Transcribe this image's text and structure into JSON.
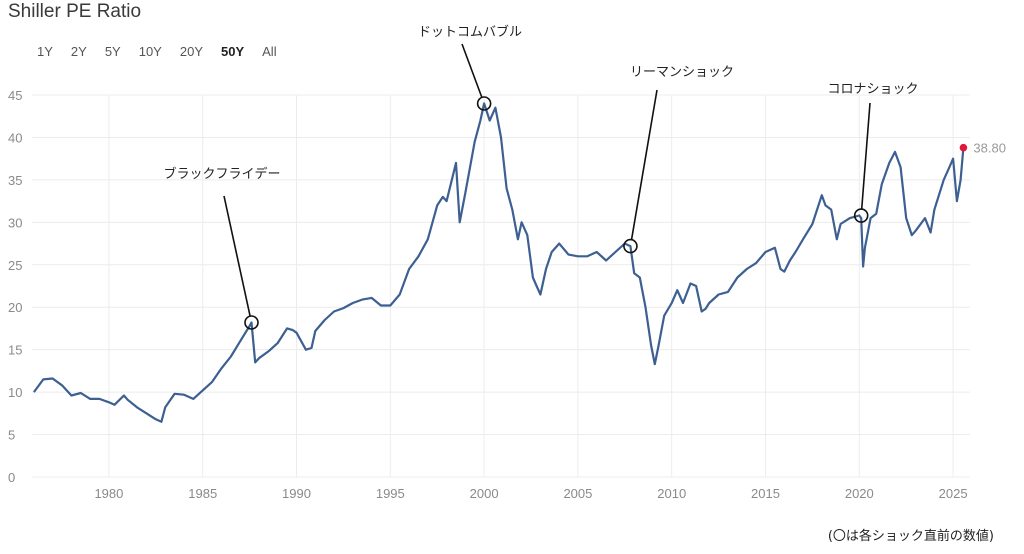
{
  "title": "Shiller PE Ratio",
  "ranges": [
    {
      "label": "1Y",
      "active": false
    },
    {
      "label": "2Y",
      "active": false
    },
    {
      "label": "5Y",
      "active": false
    },
    {
      "label": "10Y",
      "active": false
    },
    {
      "label": "20Y",
      "active": false
    },
    {
      "label": "50Y",
      "active": true
    },
    {
      "label": "All",
      "active": false
    }
  ],
  "note": "(〇は各ショック直前の数値)",
  "colors": {
    "line": "#3d5f91",
    "marker": "#e0193a",
    "grid": "#ececec"
  },
  "chart_data": {
    "type": "line",
    "xlim": [
      1975.9,
      2025.9
    ],
    "ylim": [
      0,
      45
    ],
    "grid": true,
    "x_ticks": [
      1980,
      1985,
      1990,
      1995,
      2000,
      2005,
      2010,
      2015,
      2020,
      2025
    ],
    "y_ticks": [
      0,
      5,
      10,
      15,
      20,
      25,
      30,
      35,
      40,
      45
    ],
    "series": [
      {
        "x": [
          1976.0,
          1976.5,
          1977.0,
          1977.5,
          1978.0,
          1978.5,
          1979.0,
          1979.5,
          1980.0,
          1980.3,
          1980.8,
          1981.0,
          1981.5,
          1982.0,
          1982.5,
          1982.8,
          1983.0,
          1983.5,
          1984.0,
          1984.5,
          1985.0,
          1985.5,
          1986.0,
          1986.5,
          1987.0,
          1987.5,
          1987.6,
          1987.8,
          1988.0,
          1988.5,
          1989.0,
          1989.5,
          1989.8,
          1990.0,
          1990.5,
          1990.8,
          1991.0,
          1991.5,
          1992.0,
          1992.5,
          1993.0,
          1993.5,
          1994.0,
          1994.5,
          1995.0,
          1995.5,
          1996.0,
          1996.5,
          1997.0,
          1997.5,
          1997.8,
          1998.0,
          1998.5,
          1998.7,
          1999.0,
          1999.5,
          1999.8,
          2000.0,
          2000.3,
          2000.6,
          2000.9,
          2001.2,
          2001.5,
          2001.8,
          2002.0,
          2002.3,
          2002.6,
          2002.8,
          2003.0,
          2003.3,
          2003.6,
          2004.0,
          2004.5,
          2005.0,
          2005.5,
          2006.0,
          2006.5,
          2007.0,
          2007.5,
          2007.8,
          2008.0,
          2008.3,
          2008.6,
          2008.9,
          2009.1,
          2009.3,
          2009.6,
          2010.0,
          2010.3,
          2010.6,
          2011.0,
          2011.3,
          2011.6,
          2011.8,
          2012.0,
          2012.5,
          2013.0,
          2013.5,
          2014.0,
          2014.5,
          2015.0,
          2015.5,
          2015.8,
          2016.0,
          2016.3,
          2016.6,
          2017.0,
          2017.5,
          2018.0,
          2018.2,
          2018.5,
          2018.8,
          2019.0,
          2019.5,
          2020.0,
          2020.1,
          2020.2,
          2020.3,
          2020.6,
          2020.9,
          2021.2,
          2021.6,
          2021.9,
          2022.2,
          2022.5,
          2022.8,
          2023.0,
          2023.5,
          2023.8,
          2024.0,
          2024.5,
          2024.8,
          2025.0,
          2025.2,
          2025.4,
          2025.55
        ],
        "y": [
          10.0,
          11.5,
          11.6,
          10.8,
          9.6,
          9.9,
          9.2,
          9.2,
          8.8,
          8.5,
          9.6,
          9.1,
          8.2,
          7.5,
          6.8,
          6.5,
          8.2,
          9.8,
          9.7,
          9.2,
          10.2,
          11.2,
          12.8,
          14.2,
          16.0,
          17.8,
          18.2,
          13.5,
          14.0,
          14.8,
          15.8,
          17.5,
          17.3,
          17.0,
          15.0,
          15.2,
          17.2,
          18.5,
          19.5,
          19.9,
          20.5,
          20.9,
          21.1,
          20.2,
          20.2,
          21.5,
          24.5,
          26.0,
          28.0,
          32.0,
          33.0,
          32.5,
          37.0,
          30.0,
          33.5,
          39.5,
          42.0,
          44.0,
          42.0,
          43.5,
          40.0,
          34.0,
          31.5,
          28.0,
          30.0,
          28.5,
          23.5,
          22.5,
          21.5,
          24.5,
          26.5,
          27.5,
          26.2,
          26.0,
          26.0,
          26.5,
          25.5,
          26.5,
          27.5,
          27.2,
          24.0,
          23.5,
          20.0,
          15.5,
          13.3,
          15.5,
          19.0,
          20.5,
          22.0,
          20.5,
          22.8,
          22.5,
          19.5,
          19.8,
          20.5,
          21.5,
          21.8,
          23.5,
          24.5,
          25.2,
          26.5,
          27.0,
          24.5,
          24.2,
          25.5,
          26.5,
          28.0,
          29.8,
          33.2,
          32.0,
          31.5,
          28.0,
          29.8,
          30.5,
          30.8,
          30.5,
          24.8,
          27.0,
          30.5,
          31.0,
          34.5,
          37.0,
          38.3,
          36.5,
          30.5,
          28.5,
          29.0,
          30.5,
          28.8,
          31.5,
          35.0,
          36.5,
          37.5,
          32.5,
          35.0,
          38.8
        ]
      }
    ],
    "last_value": 38.8,
    "last_value_label": "38.80",
    "annotations": [
      {
        "label": "ブラックフライデー",
        "x": 1987.6,
        "y": 18.2
      },
      {
        "label": "ドットコムバブル",
        "x": 2000.0,
        "y": 44.0
      },
      {
        "label": "リーマンショック",
        "x": 2007.8,
        "y": 27.2
      },
      {
        "label": "コロナショック",
        "x": 2020.1,
        "y": 30.8
      }
    ]
  }
}
